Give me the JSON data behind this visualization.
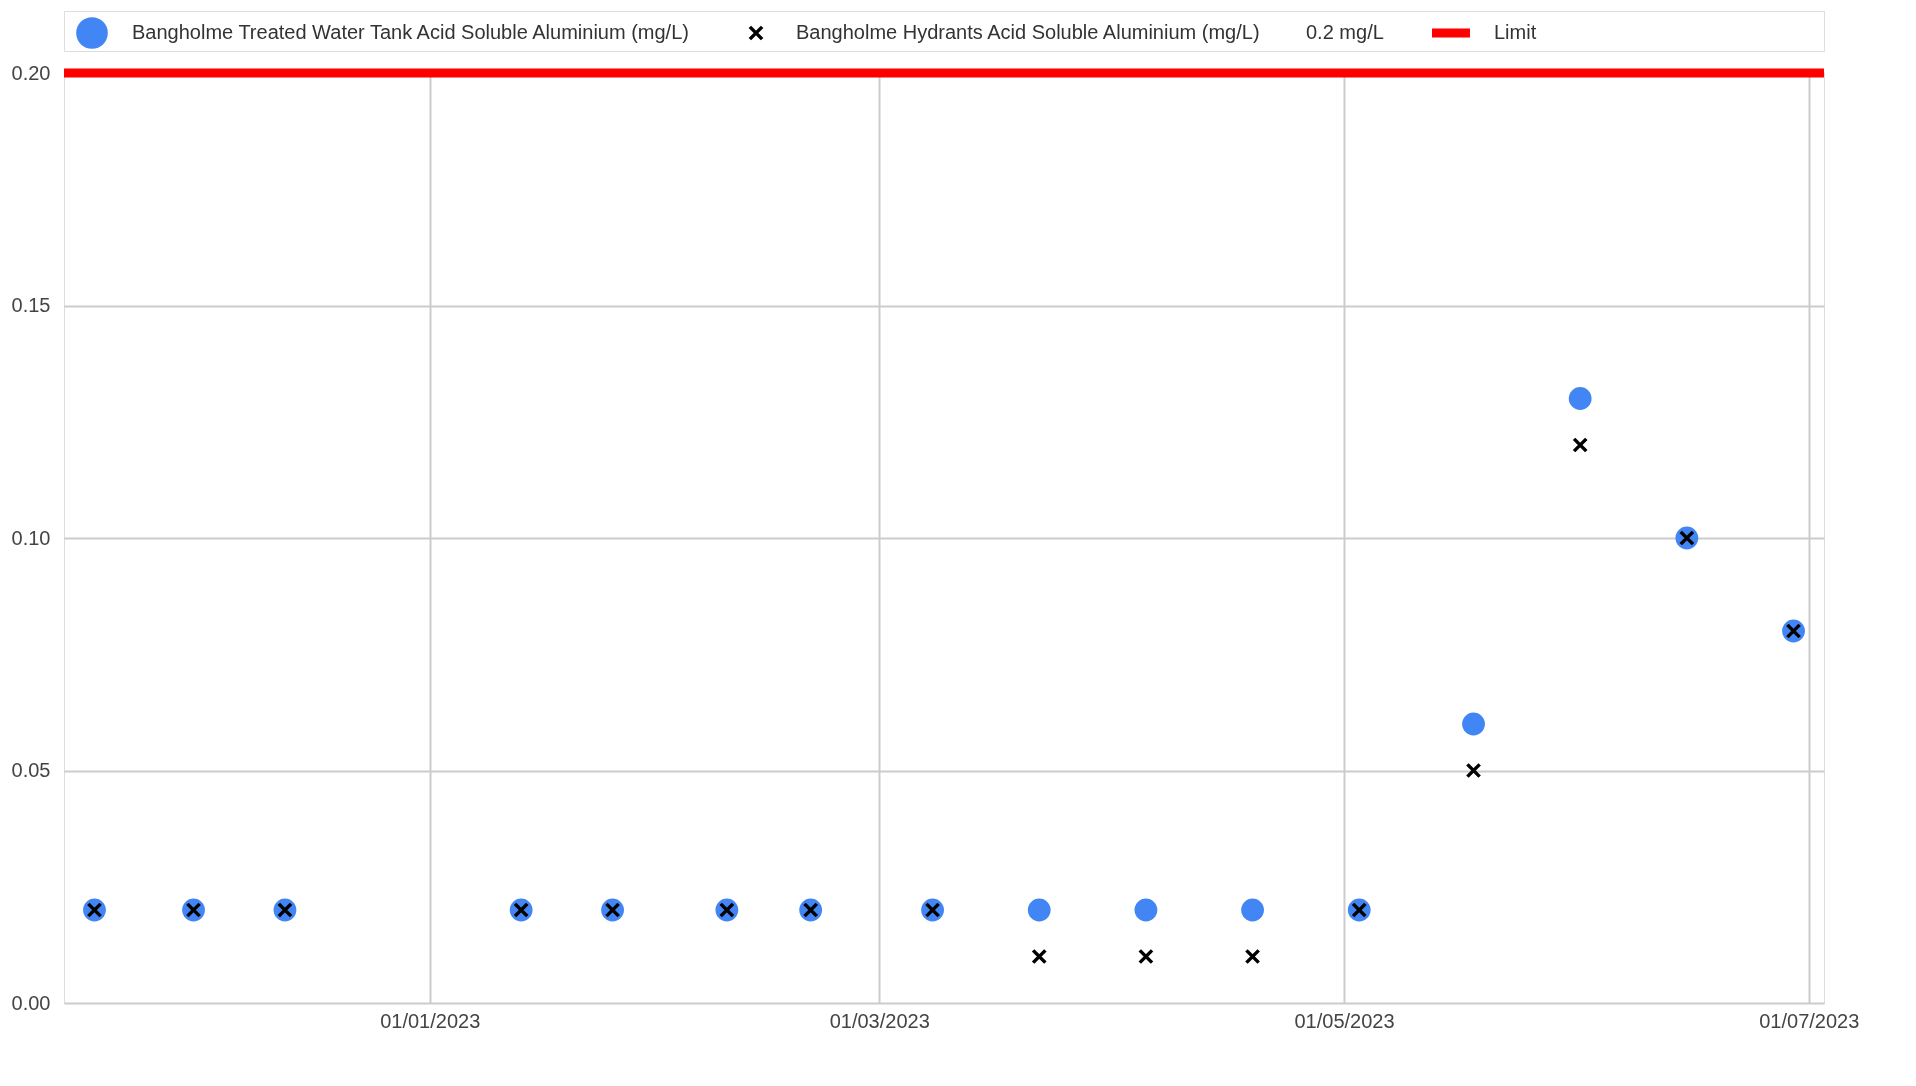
{
  "chart_data": {
    "type": "scatter",
    "x": [
      "2022-11-18",
      "2022-12-01",
      "2022-12-13",
      "2023-01-13",
      "2023-01-25",
      "2023-02-09",
      "2023-02-20",
      "2023-03-08",
      "2023-03-22",
      "2023-04-05",
      "2023-04-19",
      "2023-05-03",
      "2023-05-18",
      "2023-06-01",
      "2023-06-15",
      "2023-06-29"
    ],
    "series": [
      {
        "name": "Bangholme Treated Water Tank Acid Soluble Aluminium (mg/L)",
        "marker": "circle",
        "color": "#4285f4",
        "values": [
          0.02,
          0.02,
          0.02,
          0.02,
          0.02,
          0.02,
          0.02,
          0.02,
          0.02,
          0.02,
          0.02,
          0.02,
          0.06,
          0.13,
          0.1,
          0.08
        ]
      },
      {
        "name": "Bangholme Hydrants Acid Soluble Aluminium (mg/L)",
        "marker": "cross",
        "color": "#000000",
        "values": [
          0.02,
          0.02,
          0.02,
          0.02,
          0.02,
          0.02,
          0.02,
          0.02,
          0.01,
          0.01,
          0.01,
          0.02,
          0.05,
          0.12,
          0.1,
          0.08
        ]
      },
      {
        "name": "Limit",
        "type": "line",
        "color": "#ff0000",
        "x": [
          "2022-11-14",
          "2023-07-03"
        ],
        "values": [
          0.2,
          0.2
        ]
      }
    ],
    "annotations": [
      "0.2 mg/L"
    ],
    "xlim": [
      "2022-11-14",
      "2023-07-03"
    ],
    "xticks": [
      {
        "value": "2023-01-01",
        "label": "01/01/2023"
      },
      {
        "value": "2023-03-01",
        "label": "01/03/2023"
      },
      {
        "value": "2023-05-01",
        "label": "01/05/2023"
      },
      {
        "value": "2023-07-01",
        "label": "01/07/2023"
      }
    ],
    "ylim": [
      0,
      0.2
    ],
    "yticks": [
      {
        "value": 0,
        "label": "0.00"
      },
      {
        "value": 0.05,
        "label": "0.05"
      },
      {
        "value": 0.1,
        "label": "0.10"
      },
      {
        "value": 0.15,
        "label": "0.15"
      },
      {
        "value": 0.2,
        "label": "0.20"
      }
    ],
    "grid": true,
    "legend": "top"
  }
}
